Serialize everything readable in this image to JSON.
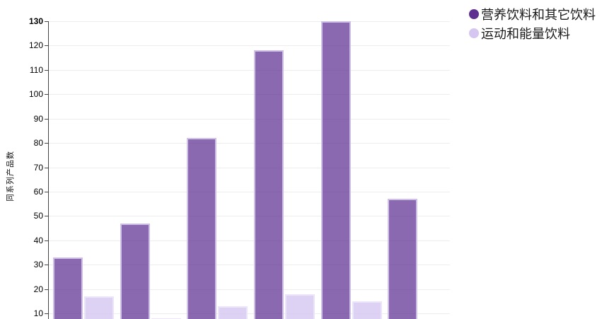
{
  "chart_data": {
    "type": "bar",
    "categories": [
      "",
      "",
      "",
      "",
      "",
      ""
    ],
    "series": [
      {
        "name": "营养饮料和其它饮料",
        "legend_color": "#5E2F91",
        "bar_fill": "rgba(94,47,145,0.72)",
        "bar_border": "#CEC0E6",
        "values": [
          33,
          47,
          82,
          118,
          130,
          57
        ]
      },
      {
        "name": "运动和能量饮料",
        "legend_color": "#D5C5F1",
        "bar_fill": "rgba(213,197,241,0.8)",
        "bar_border": "#ECE5F9",
        "values": [
          17,
          8,
          13,
          18,
          15,
          null
        ]
      }
    ],
    "title": "",
    "xlabel": "",
    "ylabel": "同系列产品数",
    "y_ticks": [
      10,
      20,
      30,
      40,
      50,
      60,
      70,
      80,
      90,
      100,
      110,
      120,
      130
    ],
    "ylim": [
      7.7,
      130
    ],
    "grid": true,
    "legend_position": "top-right",
    "colors": {
      "gridline": "#EDEDED",
      "axis": "#444444",
      "tick_text": "#000000",
      "legend_text": "#1A1A1A",
      "background": "#FFFFFF"
    }
  }
}
